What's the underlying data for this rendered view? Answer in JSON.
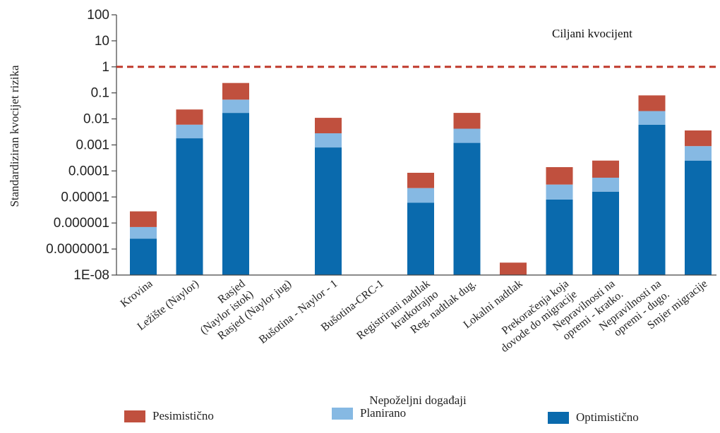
{
  "chart_data": {
    "type": "bar",
    "stacked": true,
    "log_scale": true,
    "ylabel": "Standardiziran kvocijet rizika",
    "xlabel": "Nepoželjni događaji",
    "ylim": [
      1e-08,
      100
    ],
    "y_ticks": [
      {
        "value": 100,
        "label": "100"
      },
      {
        "value": 10,
        "label": "10"
      },
      {
        "value": 1,
        "label": "1"
      },
      {
        "value": 0.1,
        "label": "0.1"
      },
      {
        "value": 0.01,
        "label": "0.01"
      },
      {
        "value": 0.001,
        "label": "0.001"
      },
      {
        "value": 0.0001,
        "label": "0.0001"
      },
      {
        "value": 1e-05,
        "label": "0.00001"
      },
      {
        "value": 1e-06,
        "label": "0.000001"
      },
      {
        "value": 1e-07,
        "label": "0.0000001"
      },
      {
        "value": 1e-08,
        "label": "1E-08"
      }
    ],
    "reference_line": {
      "value": 1,
      "label": "Ciljani kvocijent",
      "color": "#c0392b",
      "style": "dashed"
    },
    "categories": [
      [
        "Krovina"
      ],
      [
        "Ležište (Naylor)"
      ],
      [
        "Rasjed",
        "(Naylor istok)"
      ],
      [
        "Rasjed (Naylor jug)"
      ],
      [
        "Bušotina - Naylor - 1"
      ],
      [
        "Bušotina-CRC-1"
      ],
      [
        "Registrirani nadtlak",
        "kratkotrajno"
      ],
      [
        "Reg. nadtlak dug."
      ],
      [
        "Lokalni nadtlak"
      ],
      [
        "Prekoračenja koja",
        "dovode do migracije"
      ],
      [
        "Nepravilnosti na",
        "opremi - kratko."
      ],
      [
        "Nepravilnosti na",
        "opremi - dugo."
      ],
      [
        "Smjer migracije"
      ]
    ],
    "series": [
      {
        "name": "Optimistično",
        "color": "#0a6aad",
        "values": [
          2.5e-07,
          0.0018,
          0.017,
          null,
          0.0008,
          null,
          6e-06,
          0.0012,
          null,
          8e-06,
          1.6e-05,
          0.006,
          0.00025
        ]
      },
      {
        "name": "Planirano",
        "color": "#86b9e3",
        "values": [
          7e-07,
          0.006,
          0.055,
          null,
          0.0028,
          null,
          2.2e-05,
          0.0042,
          null,
          3e-05,
          5.5e-05,
          0.02,
          0.0009
        ]
      },
      {
        "name": "Pesimistično",
        "color": "#c0503e",
        "values": [
          2.8e-06,
          0.023,
          0.24,
          null,
          0.011,
          null,
          8.5e-05,
          0.017,
          3e-08,
          0.00014,
          0.00025,
          0.08,
          0.0036
        ]
      }
    ],
    "legend_position": "bottom",
    "grid": false
  }
}
